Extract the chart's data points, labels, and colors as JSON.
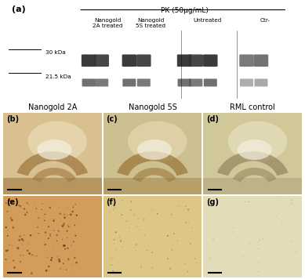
{
  "title_a": "(a)",
  "pk_label": "PK (50μg/mL)",
  "col_labels": [
    "Nanogold\n2A treated",
    "Nanogold\n5S treated",
    "Untreated",
    "Ctr-"
  ],
  "mw_labels": [
    "30 kDa",
    "21.5 kDa"
  ],
  "group_labels": [
    "Nanogold 2A",
    "Nanogold 5S",
    "RML control"
  ],
  "panel_labels": [
    "(b)",
    "(c)",
    "(d)",
    "(e)",
    "(f)",
    "(g)"
  ],
  "fig_bg": "#ffffff",
  "text_color": "#000000",
  "wb_bg": "#c8c4c0",
  "panel_top_bg": [
    "#d8c090",
    "#ccc090",
    "#d0c898"
  ],
  "panel_top_arch": [
    "#a07840",
    "#9c7838",
    "#988860"
  ],
  "panel_top_light": [
    "#e8d8b0",
    "#e0d4a8",
    "#e4dcb8"
  ],
  "panel_bot_bg": [
    "#c07828",
    "#c8a850",
    "#c8c088"
  ],
  "panel_bot_light": [
    "#e8c880",
    "#e0c878",
    "#e0d4a8"
  ],
  "panel_bot_dot": [
    "#7a3a10",
    "#8a6020",
    "#9a8840"
  ]
}
